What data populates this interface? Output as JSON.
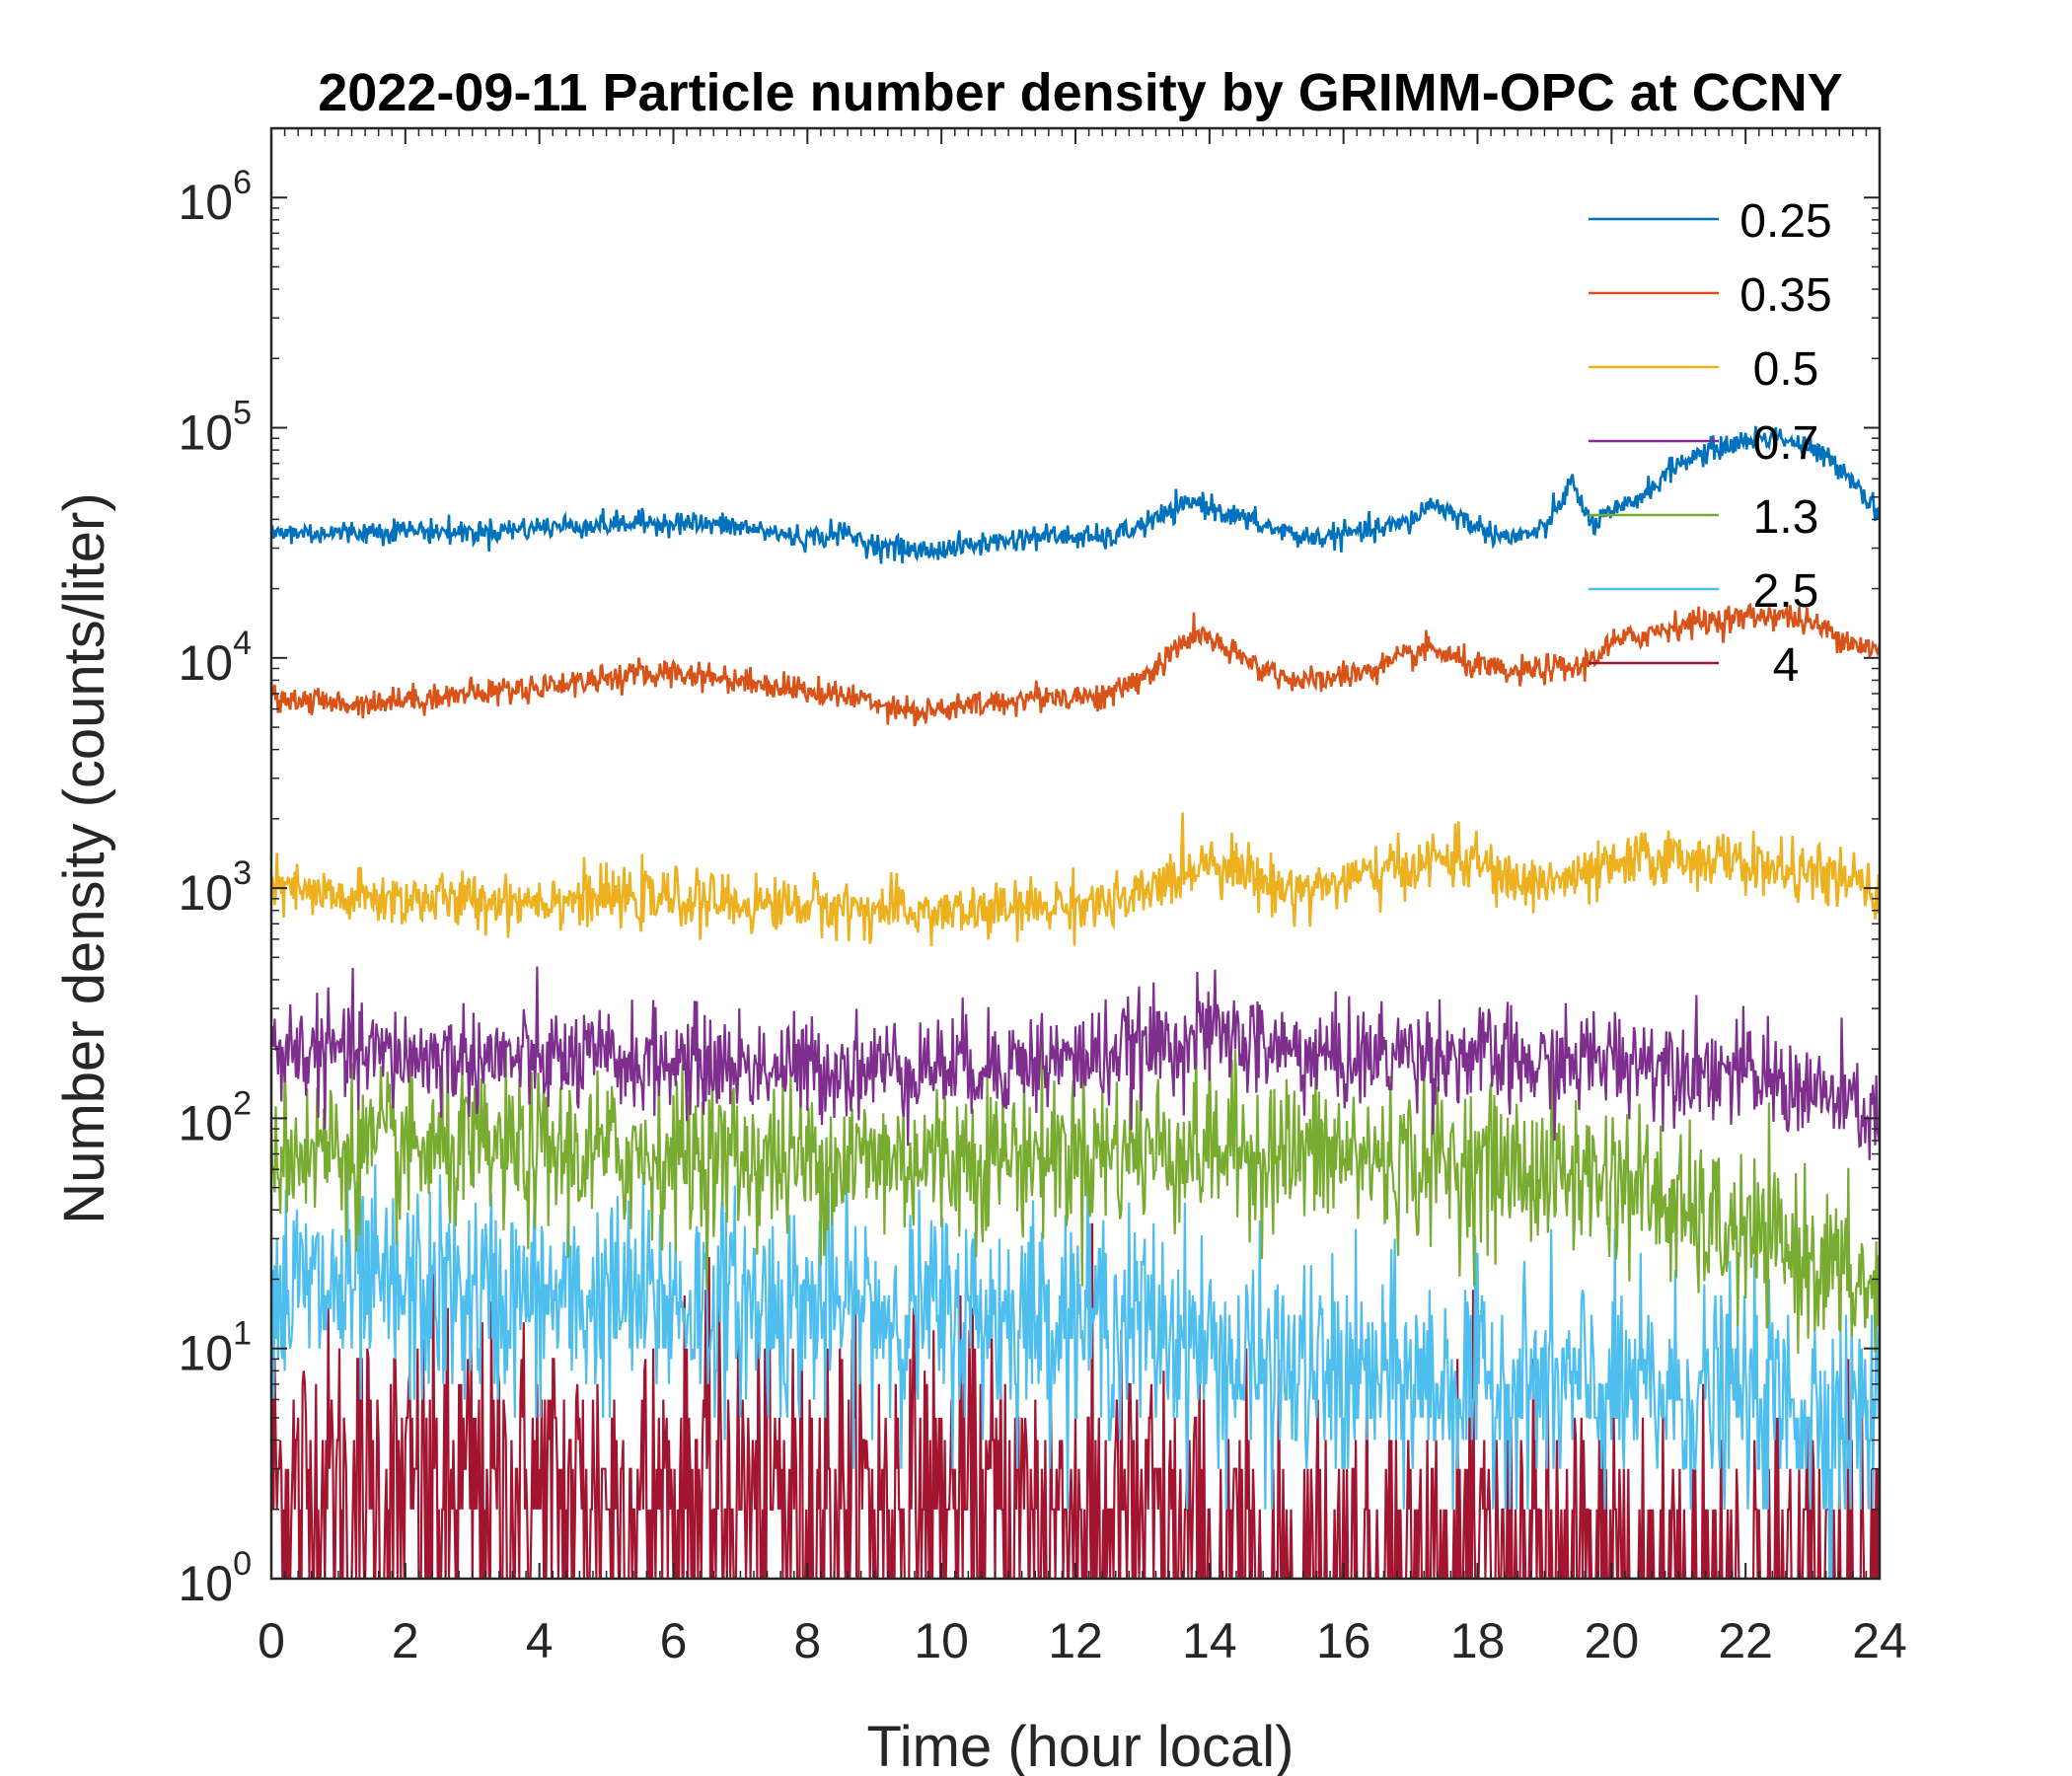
{
  "chart_data": {
    "type": "line",
    "title": "2022-09-11 Particle number density by GRIMM-OPC at CCNY",
    "xlabel": "Time (hour local)",
    "ylabel": "Number density (counts/liter)",
    "xlim": [
      0,
      24
    ],
    "ylim": [
      1,
      2000000
    ],
    "yscale": "log",
    "x_ticks": [
      0,
      2,
      4,
      6,
      8,
      10,
      12,
      14,
      16,
      18,
      20,
      22,
      24
    ],
    "y_ticks": [
      {
        "value": 1,
        "base": "10",
        "exp": "0"
      },
      {
        "value": 10,
        "base": "10",
        "exp": "1"
      },
      {
        "value": 100,
        "base": "10",
        "exp": "2"
      },
      {
        "value": 1000,
        "base": "10",
        "exp": "3"
      },
      {
        "value": 10000,
        "base": "10",
        "exp": "4"
      },
      {
        "value": 100000,
        "base": "10",
        "exp": "5"
      },
      {
        "value": 1000000,
        "base": "10",
        "exp": "6"
      }
    ],
    "grid": false,
    "legend_position": "top-right",
    "series": [
      {
        "name": "0.25",
        "color": "#0072BD",
        "noise": 0.06,
        "x": [
          0,
          1,
          2,
          3,
          4,
          5,
          6,
          7,
          8,
          8.5,
          9,
          9.7,
          10.5,
          11.5,
          12.5,
          13.2,
          13.8,
          14.3,
          15,
          15.5,
          16.5,
          17,
          17.3,
          17.6,
          18,
          18.5,
          19,
          19.4,
          19.7,
          20.2,
          20.6,
          21,
          21.5,
          22,
          22.5,
          23,
          23.5,
          24
        ],
        "values": [
          35000,
          35000,
          36000,
          35000,
          37000,
          38000,
          39000,
          37000,
          33000,
          35000,
          31000,
          29000,
          31000,
          34000,
          33000,
          40000,
          48000,
          42000,
          36000,
          33000,
          36000,
          39000,
          47000,
          43000,
          37000,
          33000,
          36000,
          58000,
          38000,
          45000,
          55000,
          70000,
          80000,
          88000,
          92000,
          80000,
          65000,
          42000
        ]
      },
      {
        "name": "0.35",
        "color": "#D95319",
        "noise": 0.07,
        "x": [
          0,
          1,
          2,
          3,
          4,
          5,
          6,
          7,
          8,
          9,
          9.7,
          10.5,
          11.5,
          12.5,
          13.2,
          13.8,
          14.3,
          15,
          15.5,
          16.5,
          17.3,
          17.8,
          18.5,
          19,
          19.5,
          20,
          21,
          22,
          22.5,
          23,
          24
        ],
        "values": [
          6800,
          6300,
          6600,
          7000,
          7500,
          8200,
          8700,
          8000,
          7200,
          6500,
          5800,
          6200,
          6800,
          6800,
          9000,
          13000,
          10500,
          8500,
          7800,
          9000,
          11000,
          9500,
          8500,
          9000,
          9000,
          11500,
          14000,
          15000,
          15500,
          14000,
          10500
        ]
      },
      {
        "name": "0.5",
        "color": "#EDB120",
        "noise": 0.14,
        "x": [
          0,
          1,
          2,
          3,
          4,
          5,
          6,
          7,
          8,
          9,
          10,
          11,
          12,
          12.8,
          13.3,
          14,
          14.5,
          15,
          15.5,
          16.5,
          17.5,
          18,
          18.5,
          19.5,
          20.5,
          21.5,
          22.5,
          23.5,
          24
        ],
        "values": [
          1000,
          900,
          900,
          880,
          900,
          900,
          900,
          850,
          850,
          800,
          780,
          800,
          860,
          860,
          1050,
          1350,
          1200,
          1000,
          1000,
          1150,
          1350,
          1300,
          1050,
          1100,
          1350,
          1350,
          1200,
          1100,
          900
        ]
      },
      {
        "name": "0.7",
        "color": "#7E2F8E",
        "noise": 0.26,
        "x": [
          0,
          2,
          4,
          6,
          8,
          10,
          12,
          13,
          14,
          15,
          16,
          17,
          18,
          19,
          20,
          21,
          22,
          23,
          24
        ],
        "values": [
          200,
          185,
          180,
          175,
          165,
          170,
          180,
          200,
          235,
          200,
          180,
          195,
          185,
          165,
          185,
          175,
          155,
          130,
          100
        ]
      },
      {
        "name": "1.3",
        "color": "#77AC30",
        "noise": 0.4,
        "x": [
          0,
          2,
          4,
          6,
          8,
          10,
          12,
          14,
          16,
          18,
          19,
          20,
          20.5,
          21,
          22,
          23,
          23.5,
          24
        ],
        "values": [
          75,
          72,
          70,
          70,
          65,
          68,
          72,
          75,
          68,
          62,
          58,
          55,
          50,
          38,
          30,
          25,
          20,
          17
        ]
      },
      {
        "name": "2.5",
        "color": "#4DBEEE",
        "noise": 0.55,
        "x": [
          0,
          2,
          4,
          6,
          8,
          10,
          12,
          13.5,
          14.5,
          16,
          18,
          20,
          22,
          24
        ],
        "values": [
          18,
          17,
          16,
          16,
          15,
          14,
          14,
          12,
          8,
          7.5,
          7,
          6.5,
          6,
          5
        ]
      },
      {
        "name": "4",
        "color": "#A2142F",
        "noise": 0.9,
        "x": [
          0,
          2,
          4,
          6,
          8,
          10,
          12,
          13,
          14,
          16,
          18,
          20,
          22,
          24
        ],
        "values": [
          2.5,
          2.3,
          2.3,
          2.2,
          2.2,
          2.1,
          1.9,
          1.7,
          1.1,
          1.05,
          1.05,
          1.05,
          1.02,
          1.0
        ]
      }
    ]
  }
}
